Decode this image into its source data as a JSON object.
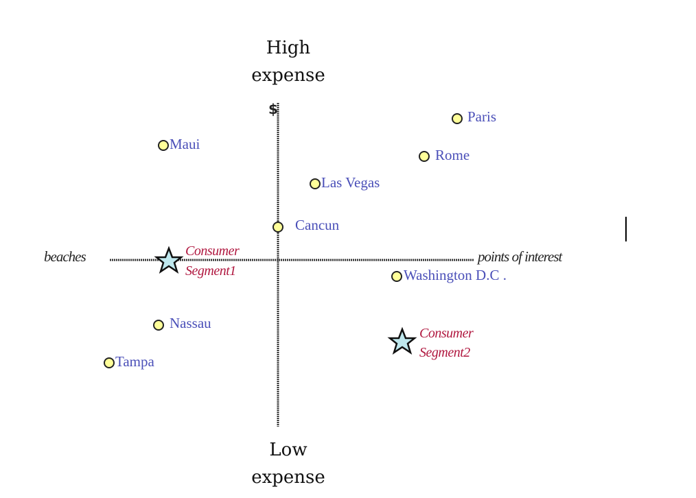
{
  "axes": {
    "top_line1": "High",
    "top_line2": "expense",
    "bottom_line1": "Low",
    "bottom_line2": "expense",
    "left": "beaches",
    "right": "points of interest",
    "currency_symbol": "$"
  },
  "cities": [
    {
      "name": "Maui"
    },
    {
      "name": "Paris"
    },
    {
      "name": "Rome"
    },
    {
      "name": "Las Vegas"
    },
    {
      "name": "Cancun"
    },
    {
      "name": "Washington D.C ."
    },
    {
      "name": "Nassau"
    },
    {
      "name": "Tampa"
    }
  ],
  "segments": [
    {
      "line1": "Consumer",
      "line2": "Segment1"
    },
    {
      "line1": "Consumer",
      "line2": "Segment2"
    }
  ],
  "colors": {
    "city_dot_fill": "#ffff99",
    "city_text": "#4a4fb8",
    "segment_text": "#b0173f",
    "star_fill": "#bfe8ee"
  }
}
